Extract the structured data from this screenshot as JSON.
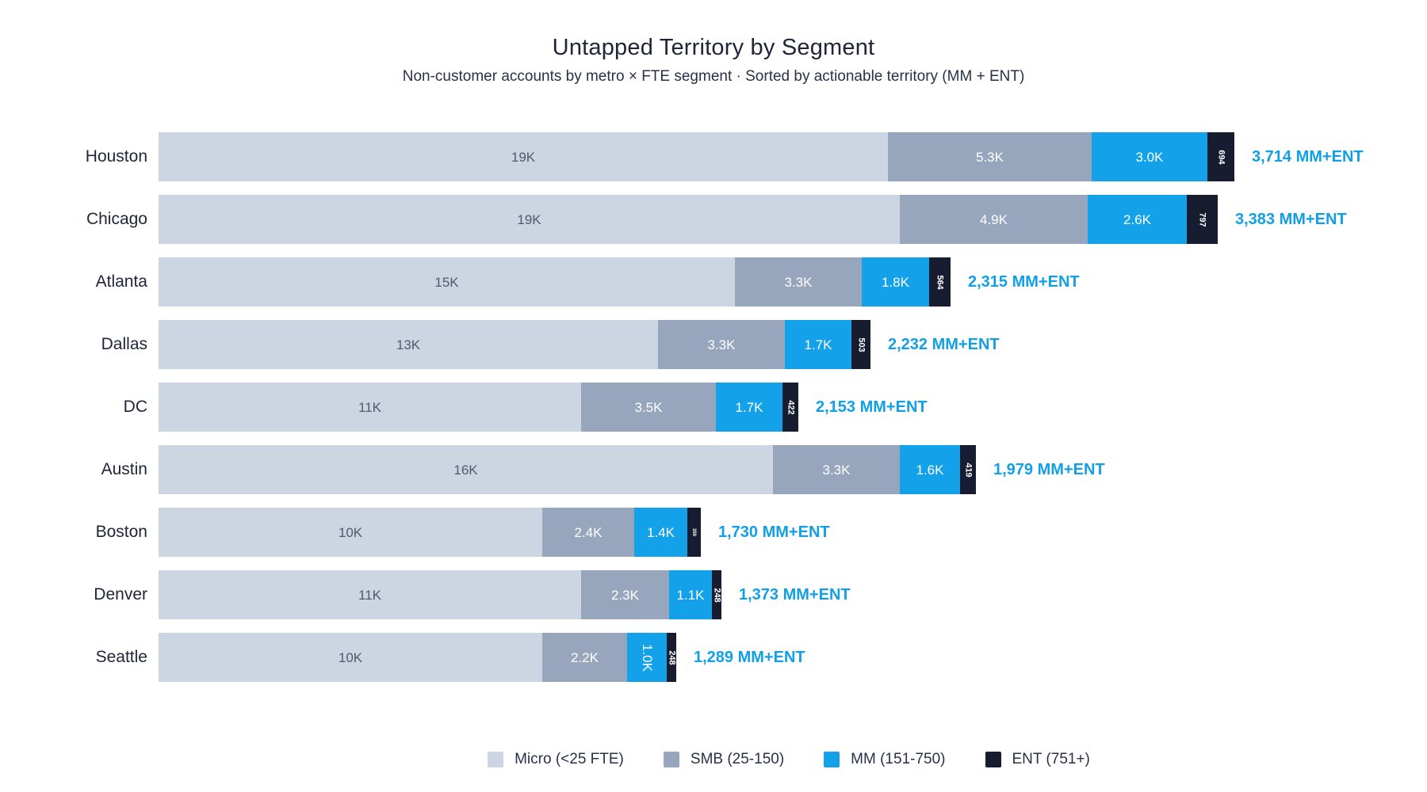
{
  "title": "Untapped Territory by Segment",
  "subtitle": "Non-customer accounts by metro × FTE segment · Sorted by actionable territory (MM + ENT)",
  "colors": {
    "micro": "#ccd5e2",
    "smb": "#97a6bc",
    "mm": "#13a2e9",
    "ent": "#171c30",
    "annotation_text": "#119fe6",
    "title_text": "#1e2439",
    "micro_label_text": "#4f5b6e",
    "background": "#ffffff"
  },
  "legend": {
    "items": [
      {
        "key": "micro",
        "label": "Micro (<25 FTE)"
      },
      {
        "key": "smb",
        "label": "SMB (25-150)"
      },
      {
        "key": "mm",
        "label": "MM (151-750)"
      },
      {
        "key": "ent",
        "label": "ENT (751+)"
      }
    ]
  },
  "chart_data": {
    "type": "bar",
    "orientation": "horizontal",
    "stacked": true,
    "grid": false,
    "legend_position": "bottom",
    "sort": "descending by MM + ENT",
    "categories": [
      "Houston",
      "Chicago",
      "Atlanta",
      "Dallas",
      "DC",
      "Austin",
      "Boston",
      "Denver",
      "Seattle"
    ],
    "series": [
      {
        "name": "Micro (<25 FTE)",
        "key": "micro",
        "values": [
          19000,
          19300,
          15000,
          13000,
          11000,
          16000,
          10000,
          11000,
          10000
        ],
        "labels": [
          "19K",
          "19K",
          "15K",
          "13K",
          "11K",
          "16K",
          "10K",
          "11K",
          "10K"
        ],
        "label_rotated": [
          false,
          false,
          false,
          false,
          false,
          false,
          false,
          false,
          false
        ],
        "label_scale": [
          1,
          1,
          1,
          1,
          1,
          1,
          1,
          1,
          1
        ]
      },
      {
        "name": "SMB (25-150)",
        "key": "smb",
        "values": [
          5300,
          4900,
          3300,
          3300,
          3500,
          3300,
          2400,
          2300,
          2200
        ],
        "labels": [
          "5.3K",
          "4.9K",
          "3.3K",
          "3.3K",
          "3.5K",
          "3.3K",
          "2.4K",
          "2.3K",
          "2.2K"
        ],
        "label_rotated": [
          false,
          false,
          false,
          false,
          false,
          false,
          false,
          false,
          false
        ],
        "label_scale": [
          1,
          1,
          1,
          1,
          1,
          1,
          1,
          1,
          1
        ]
      },
      {
        "name": "MM (151-750)",
        "key": "mm",
        "values": [
          3020,
          2586,
          1751,
          1729,
          1731,
          1560,
          1380,
          1125,
          1041
        ],
        "labels": [
          "3.0K",
          "2.6K",
          "1.8K",
          "1.7K",
          "1.7K",
          "1.6K",
          "1.4K",
          "1.1K",
          "1.0K"
        ],
        "label_rotated": [
          false,
          false,
          false,
          false,
          false,
          false,
          false,
          false,
          true
        ],
        "label_scale": [
          1,
          1,
          1,
          1,
          1,
          1,
          1,
          1,
          1
        ]
      },
      {
        "name": "ENT (751+)",
        "key": "ent",
        "values": [
          694,
          797,
          564,
          503,
          422,
          419,
          350,
          248,
          248
        ],
        "labels": [
          "694",
          "797",
          "564",
          "503",
          "422",
          "419",
          "350",
          "248",
          "248"
        ],
        "label_rotated": [
          true,
          true,
          true,
          true,
          true,
          true,
          true,
          true,
          true
        ],
        "label_scale": [
          1,
          1,
          1,
          1,
          1,
          1,
          0.5,
          1,
          1
        ]
      }
    ],
    "annotations": [
      "3,714 MM+ENT",
      "3,383 MM+ENT",
      "2,315 MM+ENT",
      "2,232 MM+ENT",
      "2,153 MM+ENT",
      "1,979 MM+ENT",
      "1,730 MM+ENT",
      "1,373 MM+ENT",
      "1,289 MM+ENT"
    ]
  }
}
